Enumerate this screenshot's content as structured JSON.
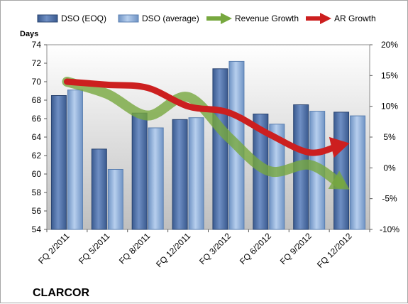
{
  "chart_data": {
    "type": "bar",
    "title": "",
    "company": "CLARCOR",
    "ylabel_left": "Days",
    "ylim_left": [
      54,
      74
    ],
    "yticks_left": [
      "54",
      "56",
      "58",
      "60",
      "62",
      "64",
      "66",
      "68",
      "70",
      "72",
      "74"
    ],
    "ylim_right": [
      -10,
      20
    ],
    "yticks_right": [
      "-10%",
      "-5%",
      "0%",
      "5%",
      "10%",
      "15%",
      "20%"
    ],
    "categories": [
      "FQ 2/2011",
      "FQ 5/2011",
      "FQ 8/2011",
      "FQ 12/2011",
      "FQ 3/2012",
      "FQ 6/2012",
      "FQ 9/2012",
      "FQ 12/2012"
    ],
    "bar_series": [
      {
        "name": "DSO (EOQ)",
        "values": [
          68.5,
          62.7,
          66.6,
          65.9,
          71.4,
          66.5,
          67.5,
          66.7
        ],
        "color": "#4f6fa8"
      },
      {
        "name": "DSO (average)",
        "values": [
          69.1,
          60.5,
          65.0,
          66.1,
          72.2,
          65.4,
          66.8,
          66.3
        ],
        "color": "#8fb0d8"
      }
    ],
    "line_series": [
      {
        "name": "Revenue Growth",
        "axis": "right",
        "values": [
          14.0,
          12.0,
          8.5,
          11.5,
          5.0,
          -0.5,
          0.5,
          -3.5
        ],
        "color": "#77a83f"
      },
      {
        "name": "AR Growth",
        "axis": "right",
        "values": [
          14.0,
          13.5,
          13.0,
          10.0,
          9.0,
          5.5,
          2.5,
          4.0
        ],
        "color": "#cc1f1f"
      }
    ],
    "grid": false,
    "legend_position": "top"
  }
}
